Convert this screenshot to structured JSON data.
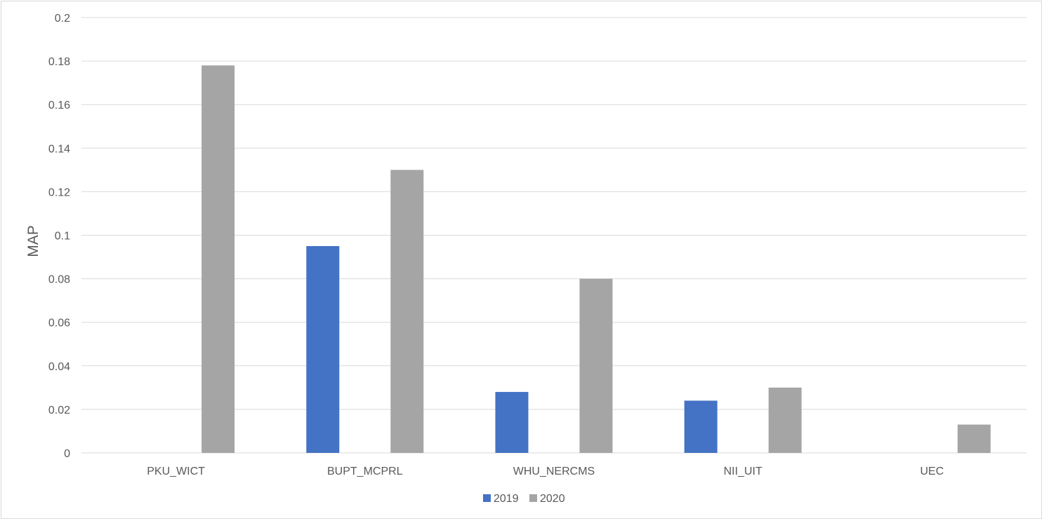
{
  "chart_data": {
    "type": "bar",
    "title": "",
    "xlabel": "",
    "ylabel": "MAP",
    "ylim": [
      0,
      0.2
    ],
    "yticks": [
      0,
      0.02,
      0.04,
      0.06,
      0.08,
      0.1,
      0.12,
      0.14,
      0.16,
      0.18,
      0.2
    ],
    "ytick_labels": [
      "0",
      "0.02",
      "0.04",
      "0.06",
      "0.08",
      "0.1",
      "0.12",
      "0.14",
      "0.16",
      "0.18",
      "0.2"
    ],
    "categories": [
      "PKU_WICT",
      "BUPT_MCPRL",
      "WHU_NERCMS",
      "NII_UIT",
      "UEC"
    ],
    "series": [
      {
        "name": "2019",
        "color": "#4472C4",
        "values": [
          null,
          0.095,
          0.028,
          0.024,
          null
        ]
      },
      {
        "name": "2020",
        "color": "#A5A5A5",
        "values": [
          0.178,
          0.13,
          0.08,
          0.03,
          0.013
        ]
      }
    ],
    "grid": true,
    "legend": "bottom-center"
  }
}
